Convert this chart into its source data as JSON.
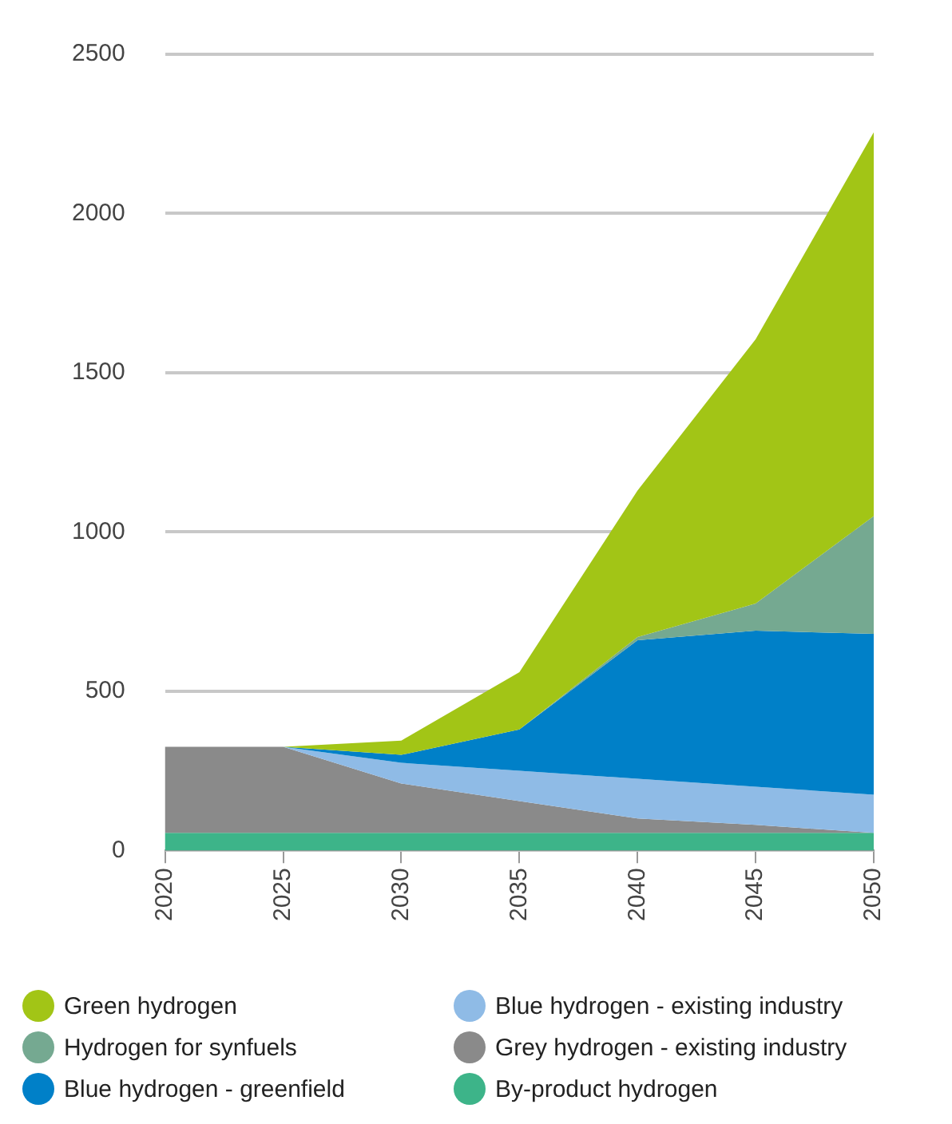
{
  "chart_data": {
    "type": "area",
    "stacked": true,
    "x": [
      2020,
      2025,
      2030,
      2035,
      2040,
      2045,
      2050
    ],
    "xlim": [
      2020,
      2050
    ],
    "xticks": [
      2020,
      2025,
      2030,
      2035,
      2040,
      2045,
      2050
    ],
    "ylim": [
      0,
      2500
    ],
    "yticks": [
      0,
      500,
      1000,
      1500,
      2000,
      2500
    ],
    "grid": "y",
    "legend": "bottom",
    "series": [
      {
        "name": "By-product hydrogen",
        "color": "#3db489",
        "values": [
          55,
          55,
          55,
          55,
          55,
          55,
          55
        ]
      },
      {
        "name": "Grey hydrogen - existing industry",
        "color": "#8a8a8a",
        "values": [
          270,
          270,
          155,
          100,
          45,
          25,
          0
        ]
      },
      {
        "name": "Blue hydrogen - existing industry",
        "color": "#8fbbe6",
        "values": [
          null,
          0,
          65,
          95,
          125,
          120,
          120
        ]
      },
      {
        "name": "Blue hydrogen - greenfield",
        "color": "#0080c8",
        "values": [
          null,
          0,
          25,
          130,
          435,
          490,
          505
        ]
      },
      {
        "name": "Hydrogen for synfuels",
        "color": "#75a991",
        "values": [
          null,
          null,
          null,
          0,
          10,
          85,
          370
        ]
      },
      {
        "name": "Green hydrogen",
        "color": "#a2c516",
        "values": [
          null,
          0,
          45,
          180,
          460,
          830,
          1205
        ]
      }
    ]
  }
}
